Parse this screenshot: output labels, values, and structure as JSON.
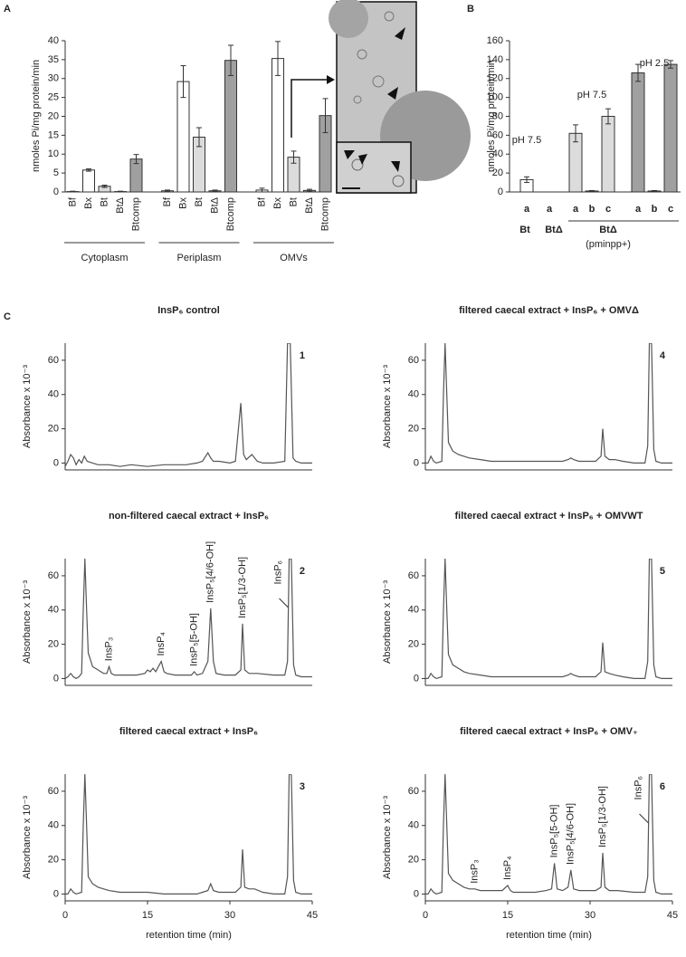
{
  "chart_data": [
    {
      "panel": "A",
      "type": "bar",
      "ylabel": "nmoles Pi/mg protein/min",
      "categories": [
        "Cytoplasm",
        "Periplasm",
        "OMVs"
      ],
      "series": [
        {
          "name": "Bf",
          "color": "#ffffff",
          "values": [
            0.1,
            0.3,
            0.5
          ],
          "errors": [
            0.1,
            0.2,
            0.5
          ]
        },
        {
          "name": "Bx",
          "color": "#ffffff",
          "values": [
            5.8,
            29.2,
            35.3
          ],
          "errors": [
            0.3,
            4.2,
            4.5
          ]
        },
        {
          "name": "Bt",
          "color": "#dcdcdc",
          "values": [
            1.5,
            14.5,
            9.2
          ],
          "errors": [
            0.3,
            2.5,
            1.6
          ]
        },
        {
          "name": "BtΔ",
          "color": "#a0a0a0",
          "values": [
            0.1,
            0.3,
            0.4
          ],
          "errors": [
            0.1,
            0.2,
            0.3
          ]
        },
        {
          "name": "Btcomp",
          "color": "#a0a0a0",
          "values": [
            8.7,
            34.8,
            20.2
          ],
          "errors": [
            1.2,
            4.0,
            4.5
          ]
        }
      ],
      "ylim": [
        0,
        40
      ],
      "yticks": [
        0,
        5,
        10,
        15,
        20,
        25,
        30,
        35,
        40
      ]
    },
    {
      "panel": "B",
      "type": "bar",
      "ylabel": "nmoles Pi/mg protein/min",
      "categories": [
        "a",
        "a",
        "a",
        "b",
        "c",
        "a",
        "b",
        "c"
      ],
      "values": [
        13,
        0,
        62,
        1,
        80,
        126,
        1,
        135
      ],
      "errors": [
        3,
        0,
        9,
        0.5,
        8,
        9,
        0.5,
        4
      ],
      "colors": [
        "#ffffff",
        "#ffffff",
        "#dcdcdc",
        "#dcdcdc",
        "#dcdcdc",
        "#a0a0a0",
        "#a0a0a0",
        "#a0a0a0"
      ],
      "groups": [
        "Bt",
        "BtΔ",
        "BtΔ"
      ],
      "group_note": "(pminpp+)",
      "annotations": [
        "pH 7.5",
        "pH 7.5",
        "pH 2.5"
      ],
      "ylim": [
        0,
        160
      ],
      "yticks": [
        0,
        20,
        40,
        60,
        80,
        100,
        120,
        140,
        160
      ]
    },
    {
      "panel": "C",
      "type": "line",
      "title": "InsP₆ control",
      "number": 1,
      "ylabel": "Absorbance x 10⁻³",
      "color": "#555555",
      "x": [
        0,
        0.5,
        1,
        1.5,
        2,
        2.5,
        3,
        3.5,
        4,
        5,
        6,
        8,
        10,
        12,
        15,
        18,
        20,
        22,
        24,
        25,
        26,
        26.5,
        27,
        28,
        30,
        31,
        32,
        32.5,
        33,
        34,
        35,
        36,
        38,
        40,
        40.5,
        41,
        41.5,
        42,
        43,
        45
      ],
      "values": [
        -2,
        1,
        5,
        3,
        -1,
        2,
        0,
        4,
        1,
        0,
        -1,
        -1,
        -2,
        -1,
        -2,
        -1,
        -1,
        -1,
        0,
        1,
        6,
        3,
        1,
        1,
        0,
        1,
        35,
        5,
        2,
        5,
        1,
        0,
        0,
        1,
        70,
        70,
        3,
        1,
        0,
        0
      ],
      "xlim": [
        0,
        45
      ],
      "ylim": [
        -4,
        70
      ],
      "yticks": [
        0,
        20,
        40,
        60
      ],
      "peaks": []
    },
    {
      "type": "line",
      "title": "non-filtered caecal extract + InsP₆",
      "number": 2,
      "ylabel": "Absorbance x 10⁻³",
      "color": "#555555",
      "x": [
        0,
        0.5,
        1,
        1.5,
        2,
        2.5,
        3,
        3.3,
        3.6,
        3.9,
        4.2,
        5,
        6,
        7,
        7.6,
        8,
        8.4,
        9,
        11,
        13,
        14.5,
        15,
        15.5,
        16,
        16.5,
        17,
        17.5,
        18,
        18.5,
        20,
        22,
        23,
        23.5,
        24,
        25,
        26,
        26.5,
        27,
        27.5,
        29,
        31,
        32,
        32.3,
        32.7,
        33.5,
        35,
        38,
        40,
        40.5,
        40.8,
        41.2,
        41.6,
        42,
        43,
        45
      ],
      "values": [
        0,
        1,
        3,
        1,
        0,
        1,
        3,
        40,
        70,
        40,
        15,
        7,
        5,
        3,
        3,
        7,
        3,
        2,
        2,
        2,
        3,
        5,
        4,
        6,
        4,
        7,
        10,
        4,
        3,
        2,
        2,
        2,
        4,
        2,
        3,
        10,
        41,
        10,
        3,
        2,
        2,
        5,
        32,
        5,
        3,
        3,
        2,
        2,
        10,
        70,
        70,
        8,
        2,
        1,
        1
      ],
      "xlim": [
        0,
        45
      ],
      "ylim": [
        -4,
        70
      ],
      "yticks": [
        0,
        20,
        40,
        60
      ],
      "peaks": [
        {
          "label": "InsP₃",
          "x": 8
        },
        {
          "label": "InsP₄",
          "x": 17.5
        },
        {
          "label": "InsP₅[5-OH]",
          "x": 23.5
        },
        {
          "label": "InsP₅[4/6-OH]",
          "x": 26.5
        },
        {
          "label": "InsP₅[1/3-OH]",
          "x": 32.3
        },
        {
          "label": "InsP₆",
          "x": 40.8
        }
      ]
    },
    {
      "type": "line",
      "title": "filtered caecal extract + InsP₆",
      "number": 3,
      "ylabel": "Absorbance x 10⁻³",
      "xlabel": "retention time (min)",
      "color": "#555555",
      "x": [
        0,
        0.5,
        1,
        1.5,
        2,
        3,
        3.3,
        3.6,
        3.9,
        4.2,
        5,
        6,
        7,
        8,
        10,
        12,
        15,
        18,
        20,
        22,
        24,
        25,
        26,
        26.5,
        27,
        28,
        30,
        31,
        32,
        32.3,
        32.7,
        33.5,
        34.5,
        36,
        38,
        40,
        40.5,
        40.8,
        41.2,
        41.6,
        42,
        43,
        45
      ],
      "values": [
        0,
        0,
        3,
        1,
        0,
        1,
        40,
        70,
        40,
        10,
        6,
        4,
        3,
        2,
        1,
        1,
        1,
        0,
        0,
        0,
        0,
        1,
        2,
        6,
        2,
        1,
        1,
        1,
        4,
        26,
        4,
        3,
        3,
        1,
        0,
        0,
        10,
        70,
        70,
        8,
        1,
        0,
        0
      ],
      "xlim": [
        0,
        45
      ],
      "ylim": [
        -4,
        70
      ],
      "xticks": [
        0,
        15,
        30,
        45
      ],
      "yticks": [
        0,
        20,
        40,
        60
      ],
      "peaks": []
    },
    {
      "type": "line",
      "title": "filtered caecal extract + InsP₆ + OMVΔ",
      "number": 4,
      "ylabel": "Absorbance x 10⁻³",
      "color": "#555555",
      "x": [
        0,
        0.5,
        1,
        1.5,
        2,
        3,
        3.3,
        3.6,
        3.9,
        4.2,
        5,
        6,
        7,
        8,
        10,
        12,
        15,
        18,
        20,
        22,
        24,
        25,
        26,
        26.5,
        27,
        28,
        30,
        31,
        32,
        32.3,
        32.7,
        33.5,
        34.5,
        36,
        38,
        40,
        40.5,
        40.8,
        41.2,
        41.6,
        42,
        43,
        45
      ],
      "values": [
        0,
        0,
        4,
        1,
        0,
        1,
        40,
        70,
        40,
        12,
        7,
        5,
        4,
        3,
        2,
        1,
        1,
        1,
        1,
        1,
        1,
        1,
        2,
        3,
        2,
        1,
        1,
        1,
        4,
        20,
        4,
        2,
        2,
        1,
        0,
        0,
        10,
        70,
        70,
        8,
        1,
        0,
        0
      ],
      "xlim": [
        0,
        45
      ],
      "ylim": [
        -4,
        70
      ],
      "yticks": [
        0,
        20,
        40,
        60
      ],
      "peaks": []
    },
    {
      "type": "line",
      "title": "filtered caecal extract + InsP₆ + OMVWT",
      "number": 5,
      "ylabel": "Absorbance x 10⁻³",
      "color": "#555555",
      "x": [
        0,
        0.5,
        1,
        1.5,
        2,
        3,
        3.3,
        3.6,
        3.9,
        4.2,
        5,
        6,
        7,
        8,
        10,
        12,
        15,
        18,
        20,
        22,
        24,
        25,
        26,
        26.5,
        27,
        28,
        30,
        31,
        32,
        32.3,
        32.7,
        33.5,
        34.5,
        36,
        38,
        40,
        40.5,
        40.8,
        41.2,
        41.6,
        42,
        43,
        45
      ],
      "values": [
        0,
        0,
        3,
        1,
        0,
        1,
        40,
        70,
        40,
        14,
        8,
        6,
        4,
        3,
        2,
        1,
        1,
        1,
        1,
        1,
        1,
        1,
        2,
        3,
        2,
        1,
        1,
        1,
        4,
        21,
        4,
        3,
        2,
        1,
        0,
        0,
        10,
        70,
        70,
        8,
        1,
        0,
        0
      ],
      "xlim": [
        0,
        45
      ],
      "ylim": [
        -4,
        70
      ],
      "yticks": [
        0,
        20,
        40,
        60
      ],
      "peaks": []
    },
    {
      "type": "line",
      "title": "filtered caecal extract + InsP₆ + OMV₊",
      "number": 6,
      "ylabel": "Absorbance x 10⁻³",
      "xlabel": "retention time (min)",
      "color": "#555555",
      "x": [
        0,
        0.5,
        1,
        1.5,
        2,
        3,
        3.3,
        3.6,
        3.9,
        4.2,
        5,
        6,
        7,
        8,
        9,
        10,
        12,
        14,
        15,
        15.5,
        16,
        18,
        20,
        22,
        23,
        23.5,
        24,
        25,
        26,
        26.5,
        27,
        28,
        30,
        31,
        32,
        32.3,
        32.7,
        33.5,
        35,
        38,
        40,
        40.5,
        40.8,
        41.2,
        41.6,
        42,
        43,
        45
      ],
      "values": [
        0,
        0,
        3,
        1,
        0,
        1,
        40,
        70,
        40,
        12,
        8,
        6,
        4,
        3,
        3,
        2,
        2,
        2,
        5,
        2,
        1,
        1,
        1,
        2,
        3,
        18,
        3,
        2,
        4,
        14,
        3,
        2,
        2,
        2,
        4,
        24,
        4,
        2,
        2,
        1,
        1,
        10,
        70,
        70,
        8,
        1,
        0,
        0
      ],
      "xlim": [
        0,
        45
      ],
      "ylim": [
        -4,
        70
      ],
      "xticks": [
        0,
        15,
        30,
        45
      ],
      "yticks": [
        0,
        20,
        40,
        60
      ],
      "peaks": [
        {
          "label": "InsP₃",
          "x": 9
        },
        {
          "label": "InsP₄",
          "x": 15
        },
        {
          "label": "InsP₅[5-OH]",
          "x": 23.5
        },
        {
          "label": "InsP₅[4/6-OH]",
          "x": 26.5
        },
        {
          "label": "InsP₅[1/3-OH]",
          "x": 32.3
        },
        {
          "label": "InsP₆",
          "x": 40.8
        }
      ]
    }
  ]
}
